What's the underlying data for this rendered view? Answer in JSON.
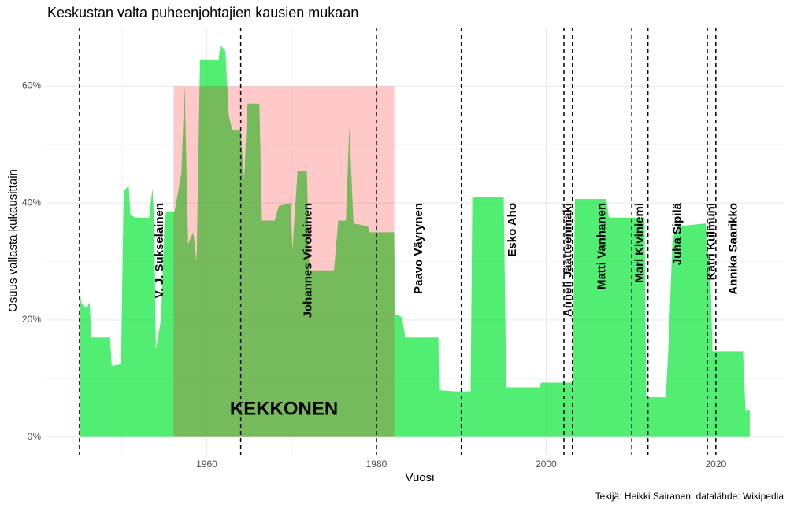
{
  "chart_data": {
    "type": "area",
    "title": "Keskustan valta puheenjohtajien kausien mukaan",
    "xlabel": "Vuosi",
    "ylabel": "Osuus vallasta kukausittain",
    "caption": "Tekijä: Heikki Sairanen, datalähde: Wikipedia",
    "xlim": [
      1941.2,
      2028
    ],
    "ylim": [
      -3,
      70
    ],
    "xticks": [
      1960,
      1980,
      2000,
      2020
    ],
    "yticks": [
      {
        "value": 0,
        "label": "0%"
      },
      {
        "value": 20,
        "label": "20%"
      },
      {
        "value": 40,
        "label": "40%"
      },
      {
        "value": 60,
        "label": "60%"
      }
    ],
    "xminor": [
      1950,
      1970,
      1990,
      2010
    ],
    "yminor": [
      10,
      30,
      50
    ],
    "grid": true,
    "color": "rgba(0,230,50,0.68)",
    "x": [
      1945.0,
      1945.2,
      1945.8,
      1946.2,
      1946.4,
      1948.6,
      1948.8,
      1949.9,
      1950.2,
      1950.8,
      1951.0,
      1951.6,
      1953.2,
      1953.6,
      1953.8,
      1954.0,
      1954.6,
      1955.0,
      1955.2,
      1956.2,
      1957.0,
      1957.4,
      1957.8,
      1958.4,
      1958.8,
      1959.2,
      1961.4,
      1961.6,
      1962.2,
      1962.6,
      1963.0,
      1964.0,
      1964.4,
      1964.8,
      1966.2,
      1966.5,
      1968.0,
      1968.5,
      1969.9,
      1970.1,
      1970.7,
      1971.8,
      1972.1,
      1975.0,
      1975.5,
      1976.4,
      1976.8,
      1977.3,
      1979.0,
      1979.2,
      1982.1,
      1982.2,
      1983.0,
      1983.4,
      1987.3,
      1987.4,
      1989.4,
      1991.1,
      1991.3,
      1995.0,
      1995.3,
      1999.2,
      1999.4,
      2003.1,
      2003.4,
      2007.1,
      2007.4,
      2011.6,
      2011.8,
      2014.1,
      2014.4,
      2014.9,
      2015.5,
      2018.8,
      2019.4,
      2019.6,
      2023.2,
      2023.5,
      2024.0
    ],
    "values": [
      25.5,
      23,
      22,
      23,
      17,
      17,
      12.2,
      12.5,
      42,
      43,
      38,
      37.5,
      37.5,
      42.5,
      37,
      15,
      20,
      36,
      38.5,
      38.5,
      45,
      60,
      33,
      35,
      30,
      64.5,
      64.5,
      67,
      66,
      55,
      52.5,
      52.5,
      44,
      57,
      57,
      37,
      37,
      39.5,
      40,
      32,
      45.5,
      45.5,
      28.5,
      28.5,
      37,
      37,
      53,
      36.5,
      36,
      35,
      35,
      21,
      20.5,
      17,
      17,
      8,
      7.8,
      7.8,
      41,
      41,
      8.5,
      8.5,
      9.3,
      9.3,
      40.7,
      40.7,
      37.5,
      37.5,
      6.8,
      6.8,
      15,
      34,
      36,
      36.5,
      26,
      14.7,
      14.7,
      4.5,
      4.5
    ],
    "highlight": {
      "label": "KEKKONEN",
      "x": [
        1956.1,
        1982.1
      ],
      "y": [
        0,
        60
      ],
      "color": "rgba(255,0,0,0.21)"
    },
    "chairs": [
      {
        "name": "V. J. Sukselainen",
        "start": 1945.0,
        "end": 1964.0
      },
      {
        "name": "Johannes Virolainen",
        "start": 1964.0,
        "end": 1980.0
      },
      {
        "name": "Paavo Väyrynen",
        "start": 1980.0,
        "end": 1990.0
      },
      {
        "name": "Esko Aho",
        "start": 1990.0,
        "end": 2002.1
      },
      {
        "name": "Anneli Jäätteenmäki",
        "start": 2002.1,
        "end": 2003.1
      },
      {
        "name": "Matti Vanhanen",
        "start": 2003.1,
        "end": 2010.1
      },
      {
        "name": "Mari Kiviniemi",
        "start": 2010.1,
        "end": 2012.0
      },
      {
        "name": "Juha Sipilä",
        "start": 2012.0,
        "end": 2019.0
      },
      {
        "name": "Katri Kulmuni",
        "start": 2019.0,
        "end": 2020.0
      },
      {
        "name": "Annika Saarikko",
        "start": 2020.0,
        "end": 2024.2
      }
    ]
  }
}
